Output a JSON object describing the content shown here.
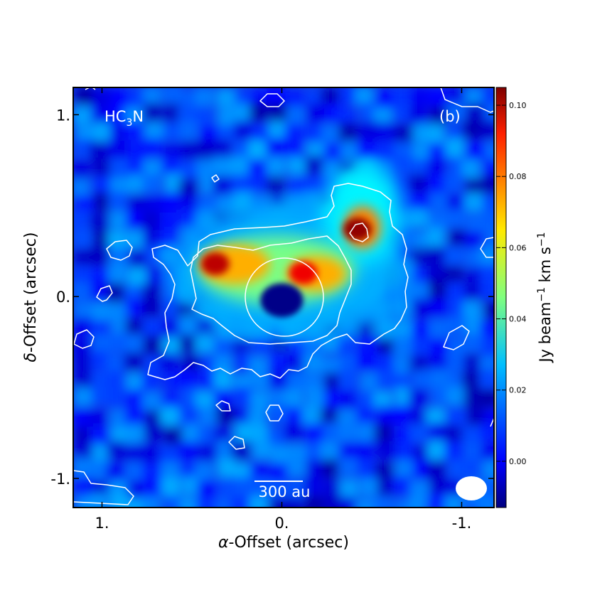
{
  "chart_data": {
    "type": "heatmap",
    "panel_label": "(b)",
    "molecule_label": {
      "base": "HC",
      "subscript": "3",
      "suffix": "N"
    },
    "xlabel": {
      "symbol": "α",
      "text": "-Offset (arcsec)"
    },
    "ylabel": {
      "symbol": "δ",
      "text": "-Offset (arcsec)"
    },
    "xlim": [
      1.16,
      -1.18
    ],
    "ylim": [
      -1.16,
      1.15
    ],
    "x_ticks": [
      {
        "value": 1.0,
        "label": "1."
      },
      {
        "value": 0.0,
        "label": "0."
      },
      {
        "value": -1.0,
        "label": "-1."
      }
    ],
    "y_ticks": [
      {
        "value": 1.0,
        "label": "1."
      },
      {
        "value": 0.0,
        "label": "0."
      },
      {
        "value": -1.0,
        "label": "-1."
      }
    ],
    "colorbar": {
      "label": "Jy beam⁻¹ km s⁻¹",
      "vmin": -0.013,
      "vmax": 0.105,
      "ticks": [
        {
          "value": 0.0,
          "label": "0.00"
        },
        {
          "value": 0.02,
          "label": "0.02"
        },
        {
          "value": 0.04,
          "label": "0.04"
        },
        {
          "value": 0.06,
          "label": "0.06"
        },
        {
          "value": 0.08,
          "label": "0.08"
        },
        {
          "value": 0.1,
          "label": "0.10"
        }
      ],
      "colormap": "jet"
    },
    "scale_bar": {
      "label": "300 au",
      "length_arcsec": 0.22
    },
    "beam": {
      "major_arcsec": 0.17,
      "minor_arcsec": 0.13,
      "position": "bottom-right"
    },
    "emission_peaks": [
      {
        "x": 0.37,
        "y": 0.18,
        "value": 0.098
      },
      {
        "x": -0.42,
        "y": 0.37,
        "value": 0.103
      },
      {
        "x": -0.12,
        "y": 0.13,
        "value": 0.092
      }
    ],
    "central_absorption": {
      "x": 0.0,
      "y": -0.02,
      "value": -0.012
    },
    "contours": {
      "color": "#ffffff",
      "description": "white contour levels overlaid",
      "levels": [
        "low",
        "mid",
        "inner ring"
      ]
    },
    "grid": false
  }
}
